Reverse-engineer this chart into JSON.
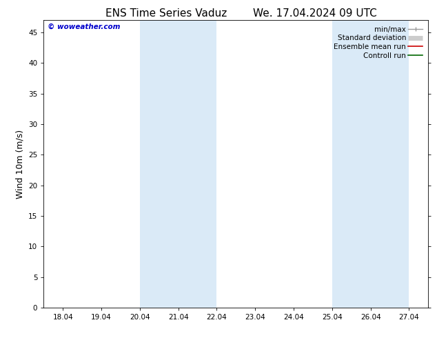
{
  "title_left": "ENS Time Series Vaduz",
  "title_right": "We. 17.04.2024 09 UTC",
  "ylabel": "Wind 10m (m/s)",
  "ylim": [
    0,
    47
  ],
  "yticks": [
    0,
    5,
    10,
    15,
    20,
    25,
    30,
    35,
    40,
    45
  ],
  "xtick_labels": [
    "18.04",
    "19.04",
    "20.04",
    "21.04",
    "22.04",
    "23.04",
    "24.04",
    "25.04",
    "26.04",
    "27.04"
  ],
  "xmin": 0,
  "xmax": 9,
  "shaded_regions": [
    {
      "xmin": 2.0,
      "xmax": 3.0,
      "color": "#daeaf7"
    },
    {
      "xmin": 3.0,
      "xmax": 4.0,
      "color": "#daeaf7"
    },
    {
      "xmin": 7.0,
      "xmax": 8.0,
      "color": "#daeaf7"
    },
    {
      "xmin": 8.0,
      "xmax": 9.0,
      "color": "#daeaf7"
    }
  ],
  "watermark_text": "© woweather.com",
  "watermark_color": "#0000cc",
  "background_color": "#ffffff",
  "title_fontsize": 11,
  "tick_fontsize": 7.5,
  "ylabel_fontsize": 9,
  "legend_fontsize": 7.5
}
